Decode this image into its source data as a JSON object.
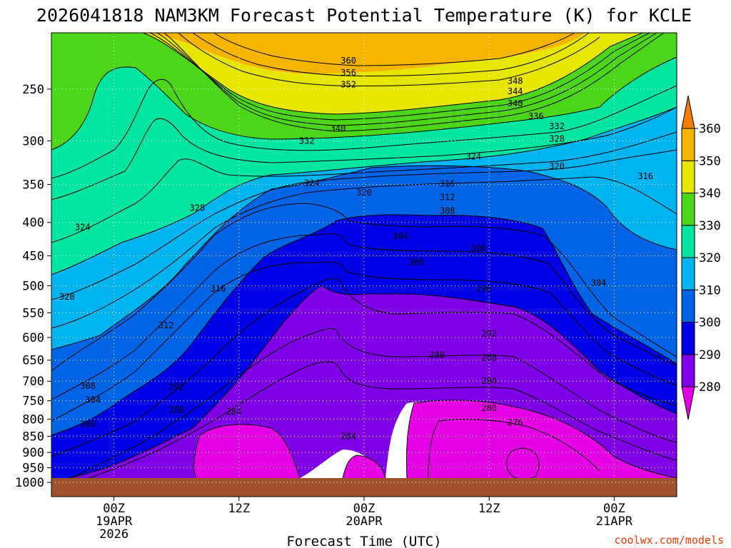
{
  "chart_data": {
    "type": "heatmap",
    "title": "2026041818 NAM3KM Forecast Potential Temperature (K) for KCLE",
    "xlabel": "Forecast Time (UTC)",
    "ylabel": "",
    "credit": "coolwx.com/models",
    "y_axis": {
      "scale": "log-pressure",
      "reversed": true,
      "range_hpa": [
        1000,
        205
      ],
      "ticks": [
        250,
        300,
        350,
        400,
        450,
        500,
        550,
        600,
        650,
        700,
        750,
        800,
        850,
        900,
        950,
        1000
      ],
      "tick_labels": [
        "250",
        "300",
        "350",
        "400",
        "450",
        "500",
        "550",
        "600",
        "650",
        "700",
        "750",
        "800",
        "850",
        "900",
        "950",
        "1000"
      ]
    },
    "x_axis": {
      "range_hours": [
        -6,
        54
      ],
      "ticks": [
        {
          "hour": 0,
          "lines": [
            "00Z",
            "19APR",
            "2026"
          ]
        },
        {
          "hour": 12,
          "lines": [
            "12Z"
          ]
        },
        {
          "hour": 24,
          "lines": [
            "00Z",
            "20APR"
          ]
        },
        {
          "hour": 36,
          "lines": [
            "12Z"
          ]
        },
        {
          "hour": 48,
          "lines": [
            "00Z",
            "21APR"
          ]
        }
      ]
    },
    "colorbar": {
      "levels": [
        280,
        290,
        300,
        310,
        320,
        330,
        340,
        350,
        360
      ],
      "labels": [
        "280",
        "290",
        "300",
        "310",
        "320",
        "330",
        "340",
        "350",
        "360"
      ],
      "colors": [
        "#e600e6",
        "#7f00e6",
        "#0000e6",
        "#0064e6",
        "#00b4f0",
        "#00e6a0",
        "#4cd619",
        "#e6e600",
        "#f5b400",
        "#f07d00"
      ]
    },
    "contour_interval_K": 4,
    "contour_labels": [
      {
        "value": "360",
        "hour": 22.5,
        "p": 226
      },
      {
        "value": "356",
        "hour": 22.5,
        "p": 236
      },
      {
        "value": "352",
        "hour": 22.5,
        "p": 246
      },
      {
        "value": "348",
        "hour": 38.5,
        "p": 243
      },
      {
        "value": "344",
        "hour": 38.5,
        "p": 252
      },
      {
        "value": "340",
        "hour": 38.5,
        "p": 263
      },
      {
        "value": "340",
        "hour": 21.5,
        "p": 287
      },
      {
        "value": "336",
        "hour": 40.5,
        "p": 275
      },
      {
        "value": "332",
        "hour": 42.5,
        "p": 285
      },
      {
        "value": "332",
        "hour": 18.5,
        "p": 300
      },
      {
        "value": "328",
        "hour": 42.5,
        "p": 298
      },
      {
        "value": "324",
        "hour": 34.5,
        "p": 317
      },
      {
        "value": "320",
        "hour": 42.5,
        "p": 328
      },
      {
        "value": "316",
        "hour": 51,
        "p": 340
      },
      {
        "value": "316",
        "hour": 32,
        "p": 349
      },
      {
        "value": "312",
        "hour": 32,
        "p": 366
      },
      {
        "value": "308",
        "hour": 32,
        "p": 384
      },
      {
        "value": "328",
        "hour": 8,
        "p": 380
      },
      {
        "value": "324",
        "hour": 19,
        "p": 348
      },
      {
        "value": "320",
        "hour": 24,
        "p": 360
      },
      {
        "value": "324",
        "hour": -3,
        "p": 407
      },
      {
        "value": "304",
        "hour": 27.5,
        "p": 420
      },
      {
        "value": "300",
        "hour": 29,
        "p": 460
      },
      {
        "value": "300",
        "hour": 35,
        "p": 438
      },
      {
        "value": "304",
        "hour": 46.5,
        "p": 495
      },
      {
        "value": "296",
        "hour": 35.5,
        "p": 505
      },
      {
        "value": "320",
        "hour": -4.5,
        "p": 520
      },
      {
        "value": "316",
        "hour": 10,
        "p": 505
      },
      {
        "value": "312",
        "hour": 5,
        "p": 575
      },
      {
        "value": "292",
        "hour": 36,
        "p": 592
      },
      {
        "value": "288",
        "hour": 31,
        "p": 638
      },
      {
        "value": "288",
        "hour": 36,
        "p": 645
      },
      {
        "value": "284",
        "hour": 36,
        "p": 700
      },
      {
        "value": "308",
        "hour": -2.5,
        "p": 712
      },
      {
        "value": "304",
        "hour": -2,
        "p": 748
      },
      {
        "value": "292",
        "hour": 6,
        "p": 715
      },
      {
        "value": "288",
        "hour": 6,
        "p": 775
      },
      {
        "value": "284",
        "hour": 11.5,
        "p": 780
      },
      {
        "value": "280",
        "hour": 36,
        "p": 770
      },
      {
        "value": "276",
        "hour": 38.5,
        "p": 810
      },
      {
        "value": "300",
        "hour": -2.5,
        "p": 815
      },
      {
        "value": "284",
        "hour": 22.5,
        "p": 850
      }
    ]
  }
}
